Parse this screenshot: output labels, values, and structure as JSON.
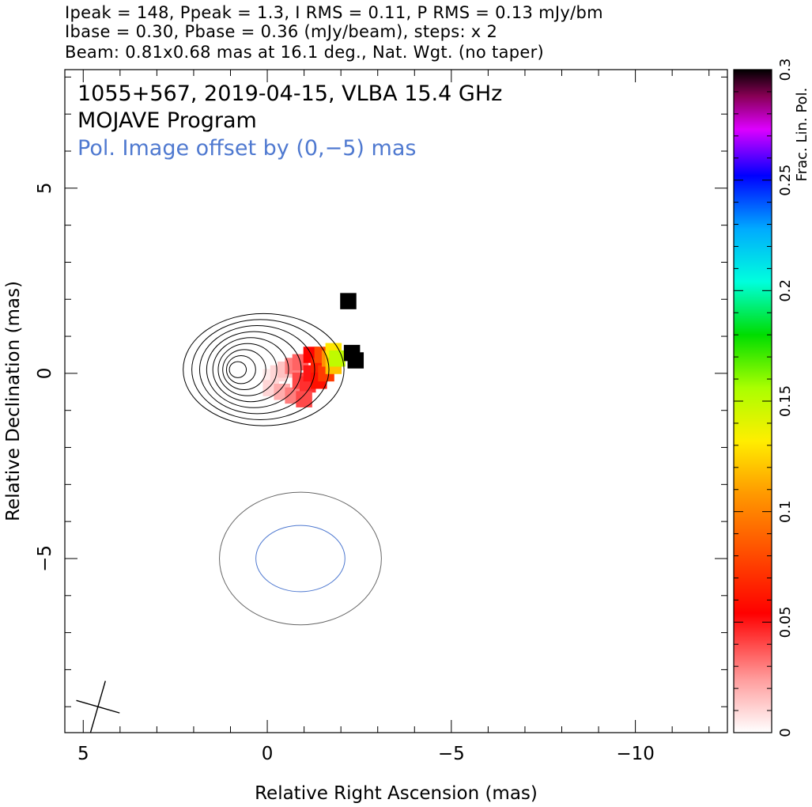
{
  "header": {
    "line1": "Ipeak = 148, Ppeak = 1.3, I RMS = 0.11, P RMS = 0.13 mJy/bm",
    "line2": "Ibase = 0.30, Pbase = 0.36 (mJy/beam), steps: x 2",
    "line3": "Beam: 0.81x0.68 mas at 16.1 deg., Nat. Wgt. (no taper)"
  },
  "chart_data": {
    "type": "heatmap",
    "title": "1055+567, 2019-04-15, VLBA 15.4 GHz",
    "subtitle": "MOJAVE Program",
    "annotation": "Pol. Image offset by (0,−5) mas",
    "annotation_color": "#4f79d0",
    "xlabel": "Relative Right Ascension (mas)",
    "ylabel": "Relative Declination (mas)",
    "xlim": [
      5.5,
      -12.5
    ],
    "ylim": [
      -9.7,
      8.2
    ],
    "x_reversed": true,
    "xticks": [
      5,
      0,
      -5,
      -10
    ],
    "xtick_labels": [
      "5",
      "0",
      "−5",
      "−10"
    ],
    "yticks": [
      5,
      0,
      -5
    ],
    "ytick_labels": [
      "5",
      "0",
      "−5"
    ],
    "beam": {
      "major_mas": 0.81,
      "minor_mas": 0.68,
      "pa_deg": 16.1,
      "center": [
        4.6,
        -9.0
      ]
    },
    "stokes_i_contours": {
      "peak_mJy_per_beam": 148,
      "base_mJy_per_beam": 0.3,
      "step_factor": 2,
      "core_center": [
        -0.1,
        0.1
      ],
      "count": 9
    },
    "polarization": {
      "peak_mJy_per_beam": 1.3,
      "base_mJy_per_beam": 0.36,
      "offset_mas": [
        0,
        -5
      ]
    },
    "colorbar": {
      "label": "Frac. Lin. Pol.",
      "range": [
        0,
        0.3
      ],
      "ticks": [
        0,
        0.05,
        0.1,
        0.15,
        0.2,
        0.25,
        0.3
      ],
      "tick_labels": [
        "0",
        "0.05",
        "0.1",
        "0.15",
        "0.2",
        "0.25",
        "0.3"
      ]
    },
    "fractional_pol_pixels": [
      {
        "x": -0.1,
        "y": -0.1,
        "v": 0.005
      },
      {
        "x": -0.3,
        "y": 0.0,
        "v": 0.01
      },
      {
        "x": -0.5,
        "y": 0.1,
        "v": 0.015
      },
      {
        "x": -0.1,
        "y": -0.4,
        "v": 0.01
      },
      {
        "x": -0.4,
        "y": -0.5,
        "v": 0.02
      },
      {
        "x": -0.7,
        "y": -0.6,
        "v": 0.03
      },
      {
        "x": -0.7,
        "y": 0.2,
        "v": 0.03
      },
      {
        "x": -0.9,
        "y": 0.3,
        "v": 0.035
      },
      {
        "x": -0.9,
        "y": -0.2,
        "v": 0.04
      },
      {
        "x": -1.1,
        "y": -0.3,
        "v": 0.045
      },
      {
        "x": -1.0,
        "y": -0.7,
        "v": 0.04
      },
      {
        "x": -1.2,
        "y": 0.0,
        "v": 0.05
      },
      {
        "x": -1.2,
        "y": 0.5,
        "v": 0.055
      },
      {
        "x": -1.4,
        "y": 0.2,
        "v": 0.065
      },
      {
        "x": -1.4,
        "y": -0.2,
        "v": 0.06
      },
      {
        "x": -1.5,
        "y": 0.5,
        "v": 0.08
      },
      {
        "x": -1.6,
        "y": 0.0,
        "v": 0.075
      },
      {
        "x": -1.7,
        "y": 0.4,
        "v": 0.105
      },
      {
        "x": -1.8,
        "y": 0.6,
        "v": 0.13
      },
      {
        "x": -1.8,
        "y": 0.2,
        "v": 0.12
      },
      {
        "x": -1.9,
        "y": 0.4,
        "v": 0.15
      },
      {
        "x": -2.3,
        "y": 0.55,
        "v": 0.3
      },
      {
        "x": -2.4,
        "y": 0.35,
        "v": 0.3
      },
      {
        "x": -2.2,
        "y": 1.95,
        "v": 0.3
      }
    ]
  }
}
